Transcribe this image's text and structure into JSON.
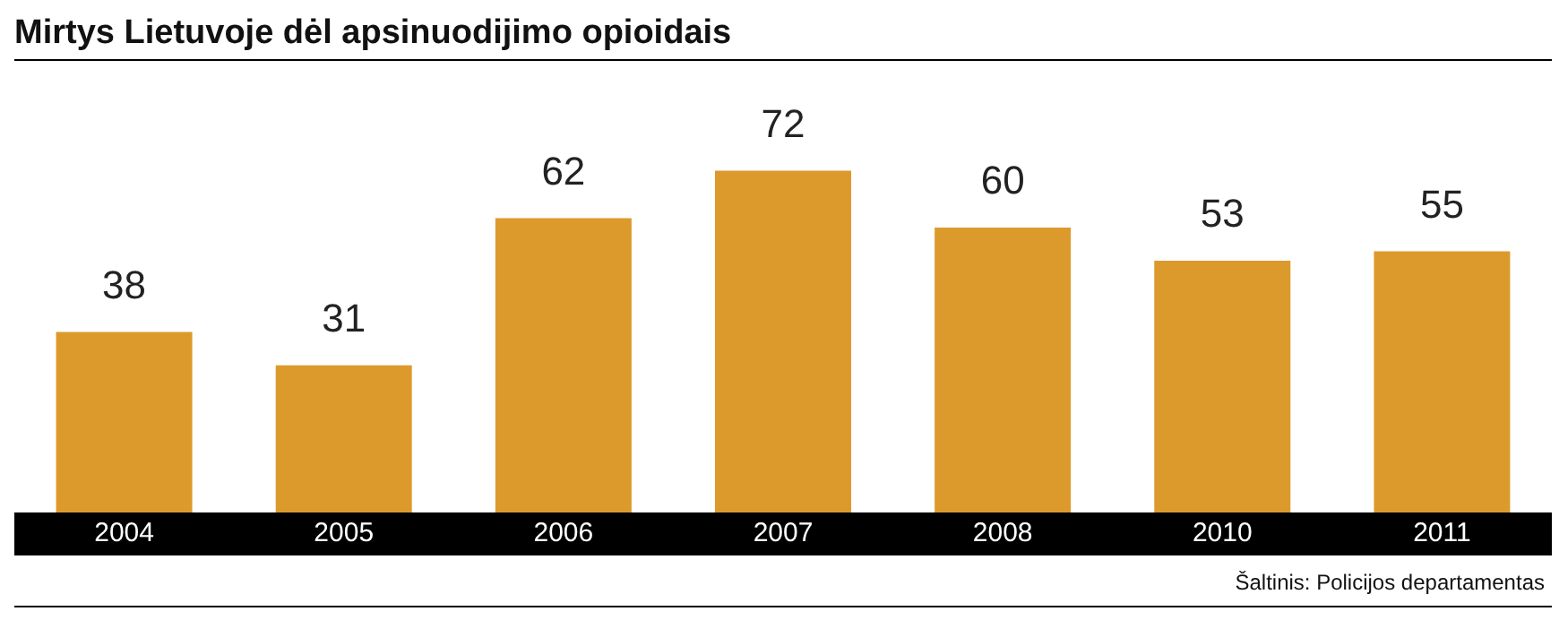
{
  "chart_data": {
    "type": "bar",
    "title": "Mirtys Lietuvoje dėl apsinuodijimo opioidais",
    "categories": [
      "2004",
      "2005",
      "2006",
      "2007",
      "2008",
      "2010",
      "2011"
    ],
    "values": [
      38,
      31,
      62,
      72,
      60,
      53,
      55
    ],
    "color": "#dc9a2c",
    "data_labels": true,
    "annotations": [
      "Šaltinis: Policijos departamentas"
    ]
  }
}
